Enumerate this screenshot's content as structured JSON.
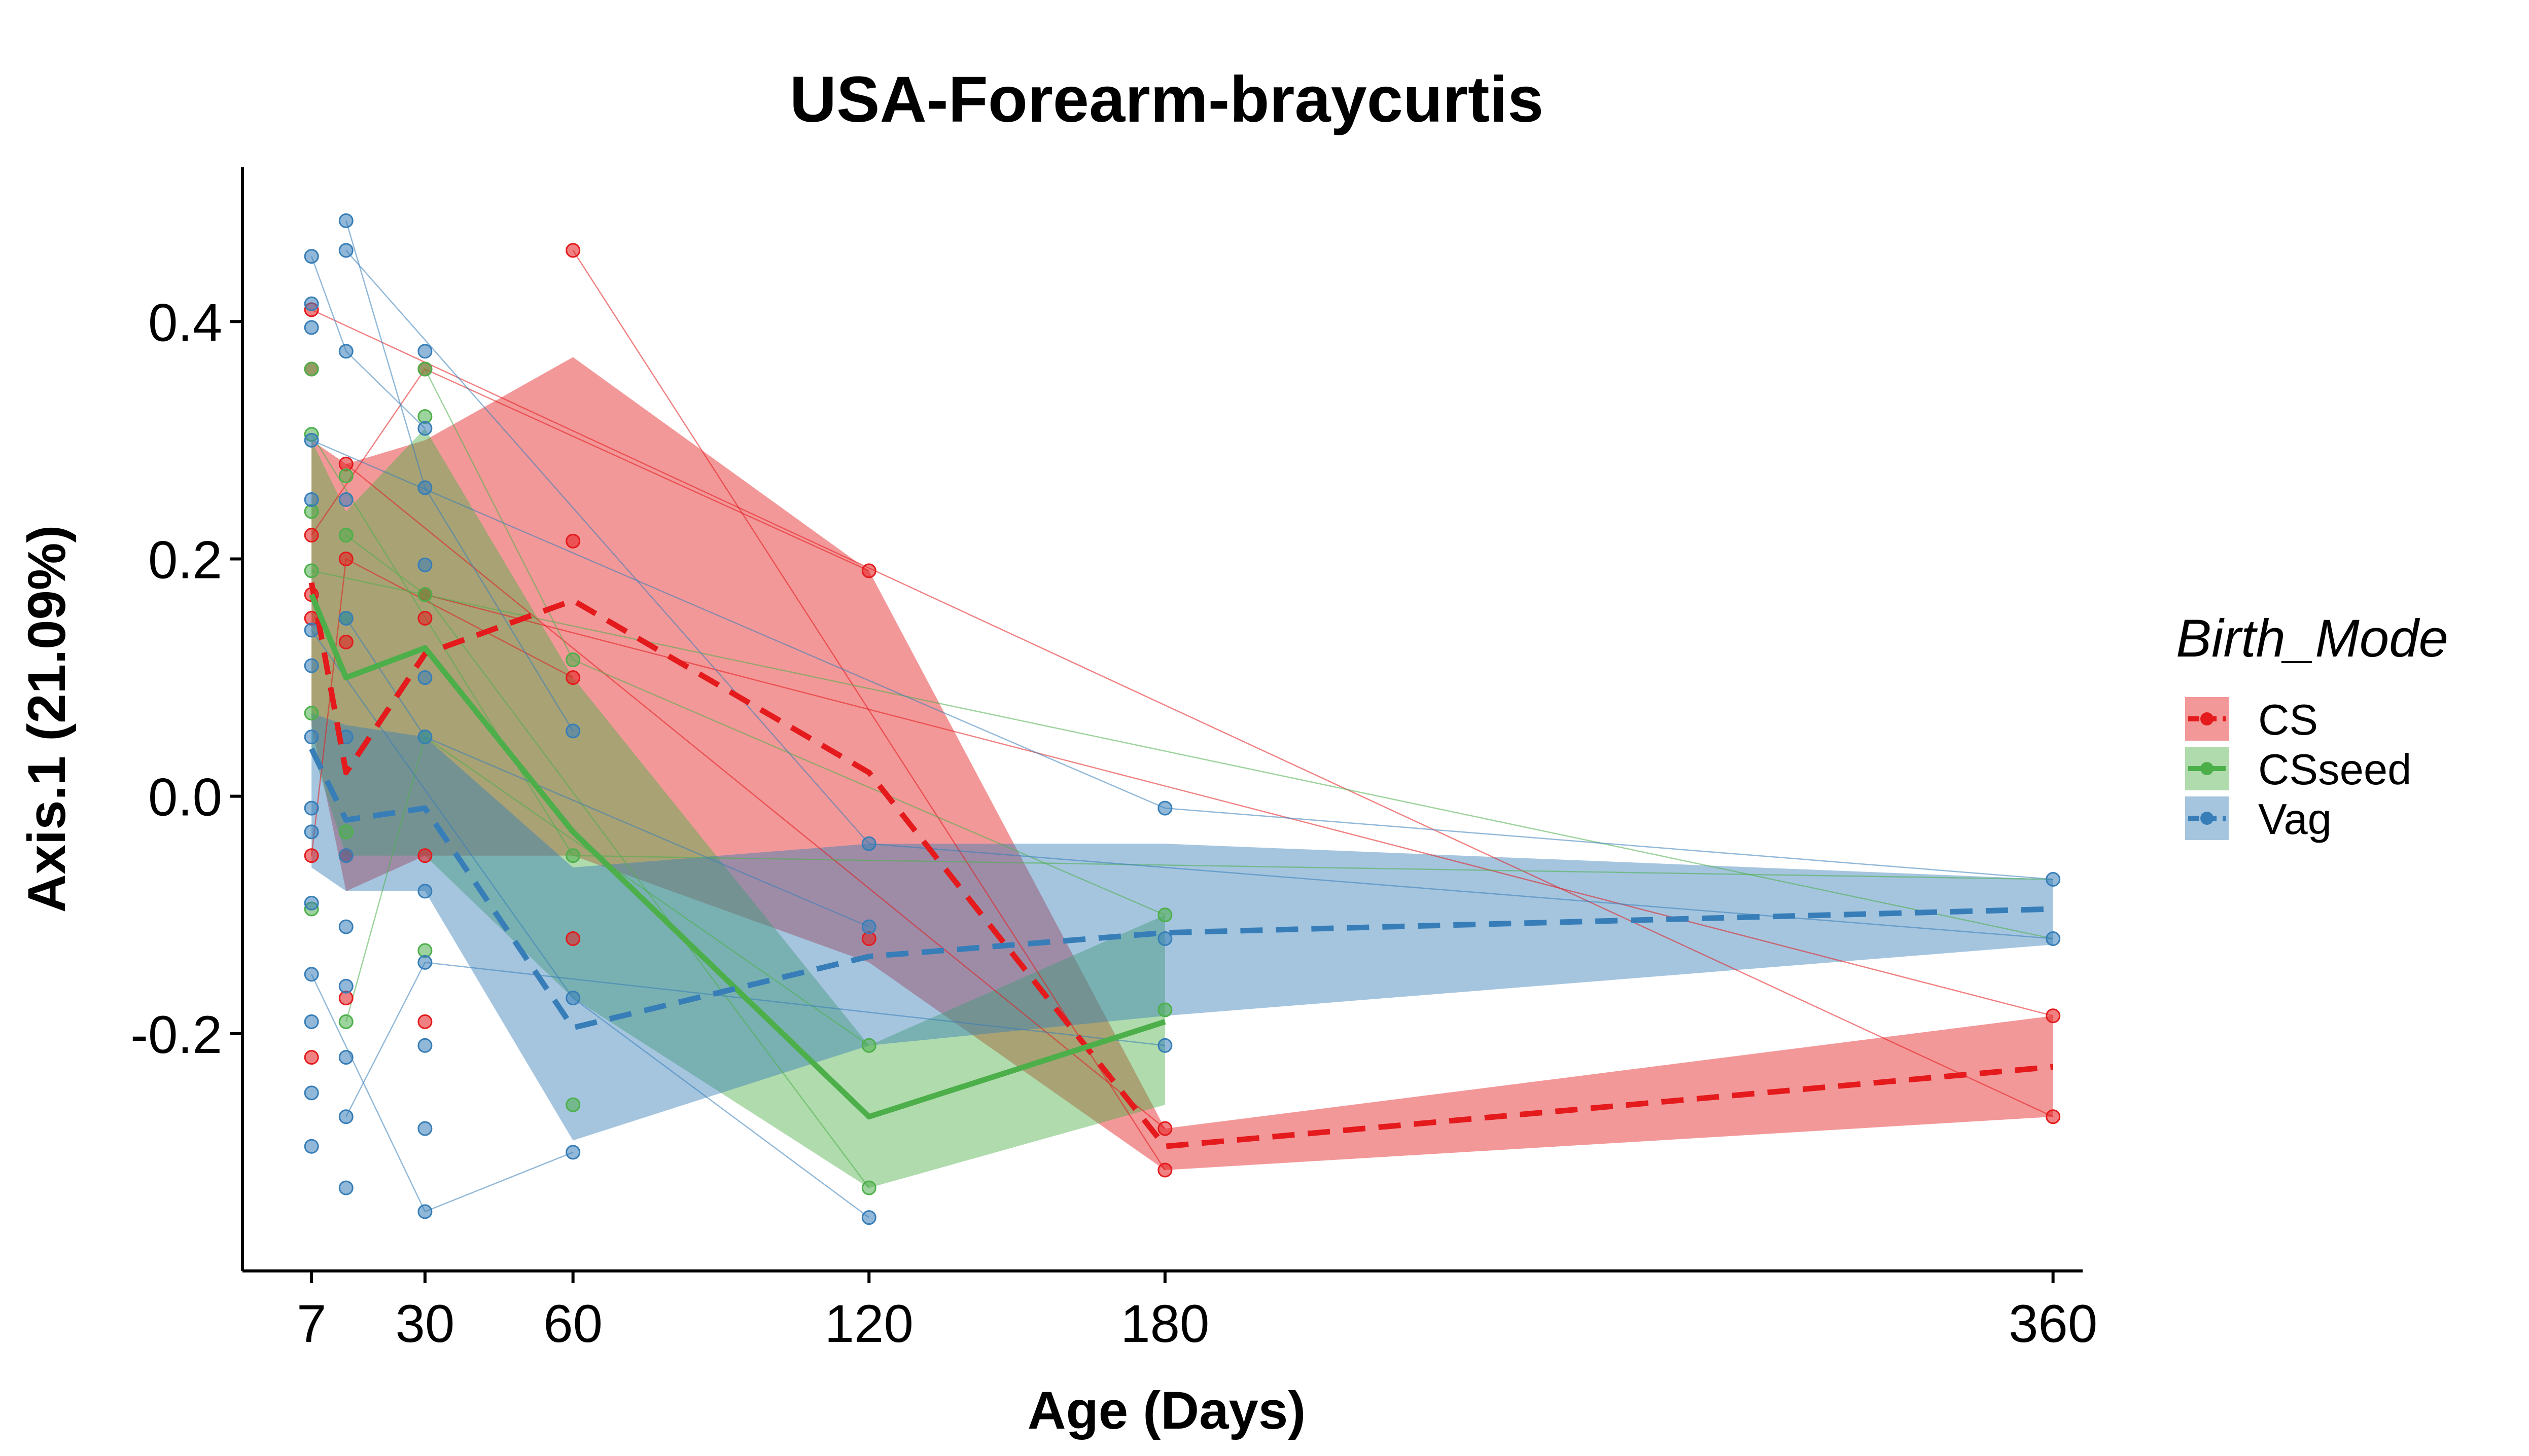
{
  "chart_data": {
    "type": "line",
    "title": "USA-Forearm-braycurtis",
    "xlabel": "Age (Days)",
    "ylabel": "Axis.1 (21.09%)",
    "xlim": [
      -7,
      366
    ],
    "ylim": [
      -0.4,
      0.53
    ],
    "x_ticks": [
      7,
      30,
      60,
      120,
      180,
      360
    ],
    "x_tick_labels": [
      "7",
      "30",
      "60",
      "120",
      "180",
      "360"
    ],
    "y_ticks": [
      -0.2,
      0.0,
      0.2,
      0.4
    ],
    "y_tick_labels": [
      "-0.2",
      "0.0",
      "0.2",
      "0.4"
    ],
    "grid": false,
    "legend": {
      "title": "Birth_Mode",
      "placement": "right"
    },
    "series": [
      {
        "name": "CS",
        "color": "#E41A1C",
        "line_style": "dashed",
        "mean": [
          [
            7,
            0.18
          ],
          [
            14,
            0.02
          ],
          [
            30,
            0.12
          ],
          [
            60,
            0.165
          ],
          [
            120,
            0.02
          ],
          [
            180,
            -0.295
          ],
          [
            360,
            -0.228
          ]
        ],
        "ribbon": [
          [
            7,
            0.3,
            0.06
          ],
          [
            14,
            0.28,
            -0.08
          ],
          [
            30,
            0.3,
            -0.05
          ],
          [
            60,
            0.37,
            -0.05
          ],
          [
            120,
            0.19,
            -0.14
          ],
          [
            180,
            -0.28,
            -0.315
          ],
          [
            360,
            -0.185,
            -0.27
          ]
        ],
        "points": [
          [
            7,
            0.41
          ],
          [
            7,
            0.36
          ],
          [
            7,
            0.22
          ],
          [
            7,
            0.17
          ],
          [
            7,
            0.15
          ],
          [
            7,
            -0.05
          ],
          [
            7,
            -0.22
          ],
          [
            14,
            0.28
          ],
          [
            14,
            0.2
          ],
          [
            14,
            0.13
          ],
          [
            14,
            -0.05
          ],
          [
            14,
            -0.17
          ],
          [
            30,
            0.36
          ],
          [
            30,
            0.17
          ],
          [
            30,
            0.15
          ],
          [
            30,
            -0.05
          ],
          [
            30,
            -0.19
          ],
          [
            60,
            0.46
          ],
          [
            60,
            0.215
          ],
          [
            60,
            0.1
          ],
          [
            60,
            -0.12
          ],
          [
            120,
            0.19
          ],
          [
            120,
            -0.12
          ],
          [
            180,
            -0.28
          ],
          [
            180,
            -0.315
          ],
          [
            360,
            -0.185
          ],
          [
            360,
            -0.27
          ]
        ]
      },
      {
        "name": "CSseed",
        "color": "#4DAF4A",
        "line_style": "solid",
        "mean": [
          [
            7,
            0.17
          ],
          [
            14,
            0.1
          ],
          [
            30,
            0.125
          ],
          [
            60,
            -0.03
          ],
          [
            120,
            -0.27
          ],
          [
            180,
            -0.19
          ]
        ],
        "ribbon": [
          [
            7,
            0.3,
            0.04
          ],
          [
            14,
            0.24,
            -0.05
          ],
          [
            30,
            0.31,
            -0.05
          ],
          [
            60,
            0.1,
            -0.17
          ],
          [
            120,
            -0.21,
            -0.33
          ],
          [
            180,
            -0.1,
            -0.26
          ]
        ],
        "points": [
          [
            7,
            0.36
          ],
          [
            7,
            0.305
          ],
          [
            7,
            0.24
          ],
          [
            7,
            0.19
          ],
          [
            7,
            0.07
          ],
          [
            7,
            -0.095
          ],
          [
            14,
            0.27
          ],
          [
            14,
            0.22
          ],
          [
            14,
            0.15
          ],
          [
            14,
            -0.03
          ],
          [
            14,
            -0.19
          ],
          [
            30,
            0.36
          ],
          [
            30,
            0.32
          ],
          [
            30,
            0.17
          ],
          [
            30,
            0.05
          ],
          [
            30,
            -0.13
          ],
          [
            60,
            0.115
          ],
          [
            60,
            -0.05
          ],
          [
            60,
            -0.26
          ],
          [
            120,
            -0.21
          ],
          [
            120,
            -0.33
          ],
          [
            180,
            -0.1
          ],
          [
            180,
            -0.18
          ]
        ]
      },
      {
        "name": "Vag",
        "color": "#377EB8",
        "line_style": "dashed",
        "mean": [
          [
            7,
            0.04
          ],
          [
            14,
            -0.02
          ],
          [
            30,
            -0.01
          ],
          [
            60,
            -0.195
          ],
          [
            120,
            -0.135
          ],
          [
            180,
            -0.115
          ],
          [
            360,
            -0.095
          ]
        ],
        "ribbon": [
          [
            7,
            0.07,
            -0.06
          ],
          [
            14,
            0.06,
            -0.08
          ],
          [
            30,
            0.05,
            -0.08
          ],
          [
            60,
            -0.06,
            -0.29
          ],
          [
            120,
            -0.04,
            -0.21
          ],
          [
            180,
            -0.04,
            -0.185
          ],
          [
            360,
            -0.07,
            -0.125
          ]
        ],
        "points": [
          [
            7,
            0.455
          ],
          [
            7,
            0.415
          ],
          [
            7,
            0.395
          ],
          [
            7,
            0.3
          ],
          [
            7,
            0.25
          ],
          [
            7,
            0.14
          ],
          [
            7,
            0.11
          ],
          [
            7,
            0.05
          ],
          [
            7,
            -0.01
          ],
          [
            7,
            -0.03
          ],
          [
            7,
            -0.09
          ],
          [
            7,
            -0.15
          ],
          [
            7,
            -0.19
          ],
          [
            7,
            -0.25
          ],
          [
            7,
            -0.295
          ],
          [
            14,
            0.485
          ],
          [
            14,
            0.46
          ],
          [
            14,
            0.375
          ],
          [
            14,
            0.25
          ],
          [
            14,
            0.15
          ],
          [
            14,
            0.05
          ],
          [
            14,
            -0.05
          ],
          [
            14,
            -0.11
          ],
          [
            14,
            -0.16
          ],
          [
            14,
            -0.22
          ],
          [
            14,
            -0.27
          ],
          [
            14,
            -0.33
          ],
          [
            30,
            0.375
          ],
          [
            30,
            0.31
          ],
          [
            30,
            0.26
          ],
          [
            30,
            0.195
          ],
          [
            30,
            0.1
          ],
          [
            30,
            0.05
          ],
          [
            30,
            -0.08
          ],
          [
            30,
            -0.14
          ],
          [
            30,
            -0.21
          ],
          [
            30,
            -0.28
          ],
          [
            30,
            -0.35
          ],
          [
            60,
            0.055
          ],
          [
            60,
            -0.17
          ],
          [
            60,
            -0.3
          ],
          [
            120,
            -0.04
          ],
          [
            120,
            -0.11
          ],
          [
            120,
            -0.355
          ],
          [
            180,
            -0.01
          ],
          [
            180,
            -0.12
          ],
          [
            180,
            -0.21
          ],
          [
            360,
            -0.07
          ],
          [
            360,
            -0.12
          ]
        ]
      }
    ],
    "subject_links": [
      {
        "color": "#E41A1C",
        "path": [
          [
            7,
            0.41
          ],
          [
            360,
            -0.27
          ]
        ]
      },
      {
        "color": "#E41A1C",
        "path": [
          [
            14,
            0.28
          ],
          [
            180,
            -0.28
          ]
        ]
      },
      {
        "color": "#E41A1C",
        "path": [
          [
            60,
            0.46
          ],
          [
            180,
            -0.315
          ]
        ]
      },
      {
        "color": "#E41A1C",
        "path": [
          [
            7,
            0.22
          ],
          [
            30,
            0.36
          ],
          [
            120,
            0.19
          ]
        ]
      },
      {
        "color": "#E41A1C",
        "path": [
          [
            30,
            0.17
          ],
          [
            360,
            -0.185
          ]
        ]
      },
      {
        "color": "#E41A1C",
        "path": [
          [
            7,
            -0.05
          ],
          [
            14,
            0.2
          ],
          [
            60,
            0.1
          ]
        ]
      },
      {
        "color": "#4DAF4A",
        "path": [
          [
            7,
            0.305
          ],
          [
            60,
            -0.05
          ],
          [
            360,
            -0.07
          ]
        ]
      },
      {
        "color": "#4DAF4A",
        "path": [
          [
            30,
            0.36
          ],
          [
            60,
            0.115
          ],
          [
            180,
            -0.1
          ]
        ]
      },
      {
        "color": "#4DAF4A",
        "path": [
          [
            14,
            0.22
          ],
          [
            30,
            0.17
          ],
          [
            120,
            -0.33
          ]
        ]
      },
      {
        "color": "#4DAF4A",
        "path": [
          [
            7,
            0.19
          ],
          [
            360,
            -0.12
          ]
        ]
      },
      {
        "color": "#4DAF4A",
        "path": [
          [
            14,
            -0.19
          ],
          [
            30,
            0.05
          ],
          [
            120,
            -0.21
          ]
        ]
      },
      {
        "color": "#377EB8",
        "path": [
          [
            14,
            0.485
          ],
          [
            30,
            0.26
          ],
          [
            60,
            0.055
          ]
        ]
      },
      {
        "color": "#377EB8",
        "path": [
          [
            7,
            0.455
          ],
          [
            14,
            0.375
          ],
          [
            30,
            0.31
          ]
        ]
      },
      {
        "color": "#377EB8",
        "path": [
          [
            7,
            0.3
          ],
          [
            180,
            -0.01
          ],
          [
            360,
            -0.07
          ]
        ]
      },
      {
        "color": "#377EB8",
        "path": [
          [
            14,
            0.46
          ],
          [
            120,
            -0.04
          ],
          [
            360,
            -0.12
          ]
        ]
      },
      {
        "color": "#377EB8",
        "path": [
          [
            7,
            0.14
          ],
          [
            60,
            -0.17
          ],
          [
            120,
            -0.355
          ]
        ]
      },
      {
        "color": "#377EB8",
        "path": [
          [
            14,
            -0.27
          ],
          [
            30,
            -0.14
          ],
          [
            180,
            -0.21
          ]
        ]
      },
      {
        "color": "#377EB8",
        "path": [
          [
            7,
            -0.15
          ],
          [
            30,
            -0.35
          ],
          [
            60,
            -0.3
          ]
        ]
      },
      {
        "color": "#377EB8",
        "path": [
          [
            14,
            0.15
          ],
          [
            30,
            0.05
          ],
          [
            120,
            -0.11
          ]
        ]
      }
    ]
  }
}
